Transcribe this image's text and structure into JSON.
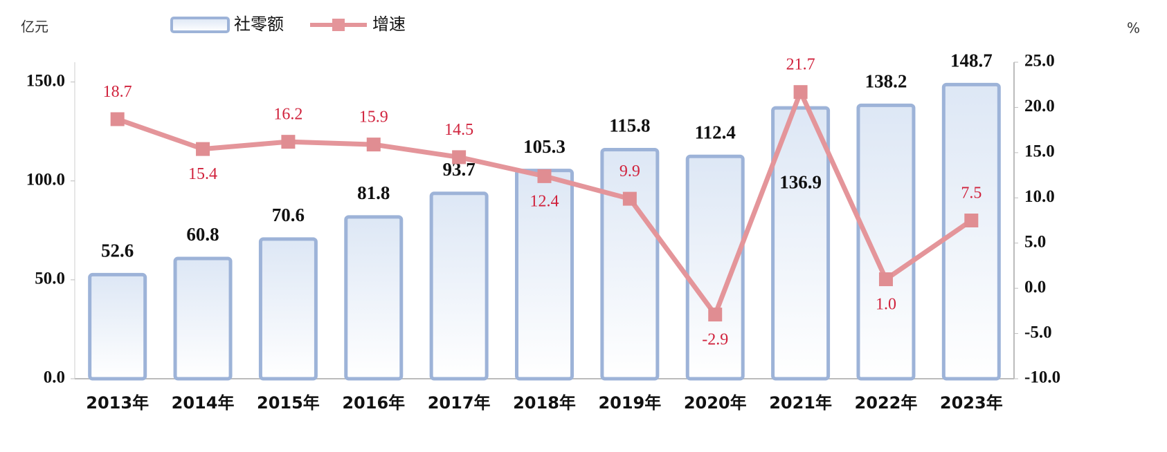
{
  "chart_data": {
    "type": "bar-line",
    "ylabel": "亿元",
    "y2label": "%",
    "categories": [
      "2013年",
      "2014年",
      "2015年",
      "2016年",
      "2017年",
      "2018年",
      "2019年",
      "2020年",
      "2021年",
      "2022年",
      "2023年"
    ],
    "series": [
      {
        "name": "社零额",
        "type": "bar",
        "color": "#9db3d8",
        "values": [
          52.6,
          60.8,
          70.6,
          81.8,
          93.7,
          105.3,
          115.8,
          112.4,
          136.9,
          138.2,
          148.7
        ]
      },
      {
        "name": "增速",
        "type": "line",
        "axis": "y2",
        "color": "#e4959a",
        "values": [
          18.7,
          15.4,
          16.2,
          15.9,
          14.5,
          12.4,
          9.9,
          -2.9,
          21.7,
          1.0,
          7.5
        ],
        "value_labels": [
          "18.7",
          "15.4",
          "16.2",
          "15.9",
          "14.5",
          "12.4",
          "9.9",
          "-2.9",
          "21.7",
          "1.0",
          "7.5"
        ]
      }
    ],
    "ylim": [
      0,
      160
    ],
    "yticks": [
      {
        "value": 0,
        "label": "0.0"
      },
      {
        "value": 50,
        "label": "50.0"
      },
      {
        "value": 100,
        "label": "100.0"
      },
      {
        "value": 150,
        "label": "150.0"
      }
    ],
    "y2lim": [
      -10,
      25
    ],
    "y2ticks": [
      {
        "value": -10,
        "label": "-10.0"
      },
      {
        "value": -5,
        "label": "-5.0"
      },
      {
        "value": 0,
        "label": "0.0"
      },
      {
        "value": 5,
        "label": "5.0"
      },
      {
        "value": 10,
        "label": "10.0"
      },
      {
        "value": 15,
        "label": "15.0"
      },
      {
        "value": 20,
        "label": "20.0"
      },
      {
        "value": 25,
        "label": "25.0"
      }
    ],
    "grid": false,
    "legend": "top-left"
  }
}
